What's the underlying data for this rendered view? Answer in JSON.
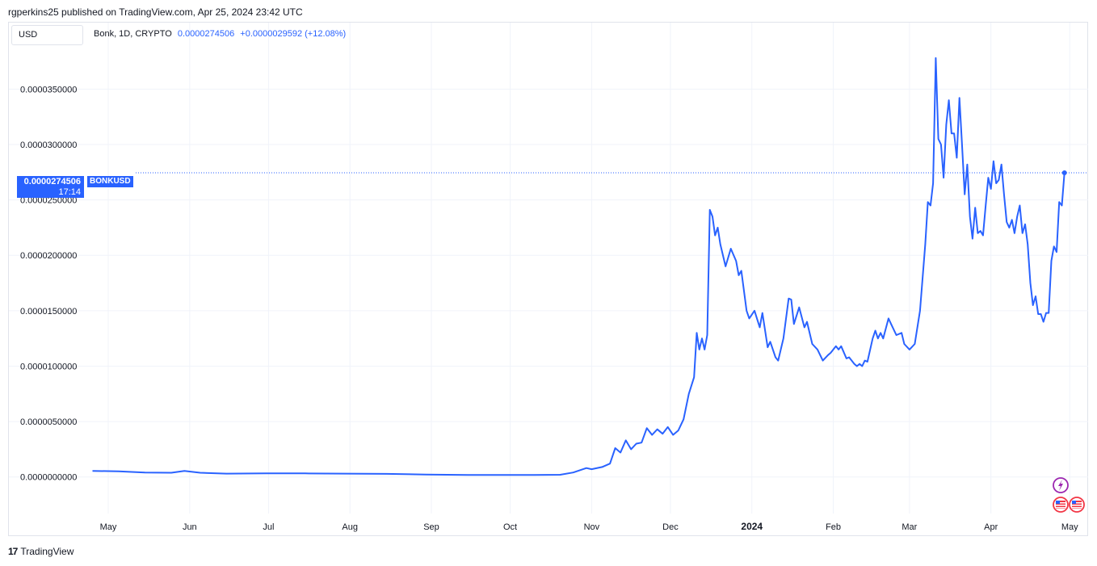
{
  "header": {
    "published": "rgperkins25 published on TradingView.com, Apr 25, 2024 23:42 UTC"
  },
  "currency_button": {
    "label": "USD"
  },
  "legend": {
    "symbol": "Bonk, 1D, CRYPTO",
    "price": "0.0000274506",
    "change": "+0.0000029592 (+12.08%)"
  },
  "price_label": {
    "price": "0.0000274506",
    "countdown": "17:14",
    "ticker": "BONKUSD"
  },
  "footer": {
    "brand": "TradingView",
    "logo_glyph": "17"
  },
  "colors": {
    "line": "#2962ff",
    "grid": "#f0f3fa",
    "border": "#e0e3eb"
  },
  "chart_data": {
    "type": "line",
    "series": [
      {
        "values": [
          [
            "2023-04-25",
            5.5e-07
          ],
          [
            "2023-05-05",
            5e-07
          ],
          [
            "2023-05-15",
            4e-07
          ],
          [
            "2023-05-25",
            3.8e-07
          ],
          [
            "2023-05-30",
            5.5e-07
          ],
          [
            "2023-06-05",
            3.8e-07
          ],
          [
            "2023-06-15",
            3e-07
          ],
          [
            "2023-06-30",
            3.2e-07
          ],
          [
            "2023-07-15",
            3.2e-07
          ],
          [
            "2023-07-30",
            3e-07
          ],
          [
            "2023-08-15",
            2.8e-07
          ],
          [
            "2023-08-30",
            2.2e-07
          ],
          [
            "2023-09-15",
            1.8e-07
          ],
          [
            "2023-09-30",
            1.8e-07
          ],
          [
            "2023-10-10",
            1.8e-07
          ],
          [
            "2023-10-20",
            2e-07
          ],
          [
            "2023-10-25",
            4e-07
          ],
          [
            "2023-10-30",
            8e-07
          ],
          [
            "2023-11-01",
            7e-07
          ],
          [
            "2023-11-05",
            9e-07
          ],
          [
            "2023-11-08",
            1.2e-06
          ],
          [
            "2023-11-10",
            2.6e-06
          ],
          [
            "2023-11-12",
            2.2e-06
          ],
          [
            "2023-11-14",
            3.3e-06
          ],
          [
            "2023-11-16",
            2.5e-06
          ],
          [
            "2023-11-18",
            3e-06
          ],
          [
            "2023-11-20",
            3.1e-06
          ],
          [
            "2023-11-22",
            4.4e-06
          ],
          [
            "2023-11-24",
            3.8e-06
          ],
          [
            "2023-11-26",
            4.3e-06
          ],
          [
            "2023-11-28",
            3.9e-06
          ],
          [
            "2023-11-30",
            4.5e-06
          ],
          [
            "2023-12-02",
            3.8e-06
          ],
          [
            "2023-12-04",
            4.2e-06
          ],
          [
            "2023-12-06",
            5.2e-06
          ],
          [
            "2023-12-08",
            7.5e-06
          ],
          [
            "2023-12-10",
            9e-06
          ],
          [
            "2023-12-11",
            1.3e-05
          ],
          [
            "2023-12-12",
            1.15e-05
          ],
          [
            "2023-12-13",
            1.25e-05
          ],
          [
            "2023-12-14",
            1.15e-05
          ],
          [
            "2023-12-15",
            1.28e-05
          ],
          [
            "2023-12-16",
            2.41e-05
          ],
          [
            "2023-12-17",
            2.35e-05
          ],
          [
            "2023-12-18",
            2.18e-05
          ],
          [
            "2023-12-19",
            2.25e-05
          ],
          [
            "2023-12-20",
            2.1e-05
          ],
          [
            "2023-12-22",
            1.9e-05
          ],
          [
            "2023-12-24",
            2.06e-05
          ],
          [
            "2023-12-26",
            1.95e-05
          ],
          [
            "2023-12-27",
            1.82e-05
          ],
          [
            "2023-12-28",
            1.86e-05
          ],
          [
            "2023-12-30",
            1.5e-05
          ],
          [
            "2023-12-31",
            1.43e-05
          ],
          [
            "2024-01-02",
            1.5e-05
          ],
          [
            "2024-01-04",
            1.35e-05
          ],
          [
            "2024-01-05",
            1.48e-05
          ],
          [
            "2024-01-07",
            1.17e-05
          ],
          [
            "2024-01-08",
            1.22e-05
          ],
          [
            "2024-01-10",
            1.08e-05
          ],
          [
            "2024-01-11",
            1.05e-05
          ],
          [
            "2024-01-13",
            1.25e-05
          ],
          [
            "2024-01-15",
            1.61e-05
          ],
          [
            "2024-01-16",
            1.6e-05
          ],
          [
            "2024-01-17",
            1.38e-05
          ],
          [
            "2024-01-19",
            1.53e-05
          ],
          [
            "2024-01-21",
            1.35e-05
          ],
          [
            "2024-01-22",
            1.4e-05
          ],
          [
            "2024-01-24",
            1.2e-05
          ],
          [
            "2024-01-26",
            1.15e-05
          ],
          [
            "2024-01-28",
            1.05e-05
          ],
          [
            "2024-01-30",
            1.1e-05
          ],
          [
            "2024-01-31",
            1.12e-05
          ],
          [
            "2024-02-02",
            1.18e-05
          ],
          [
            "2024-02-03",
            1.15e-05
          ],
          [
            "2024-02-04",
            1.18e-05
          ],
          [
            "2024-02-06",
            1.07e-05
          ],
          [
            "2024-02-07",
            1.08e-05
          ],
          [
            "2024-02-09",
            1.02e-05
          ],
          [
            "2024-02-10",
            1e-05
          ],
          [
            "2024-02-11",
            1.02e-05
          ],
          [
            "2024-02-12",
            1e-05
          ],
          [
            "2024-02-13",
            1.05e-05
          ],
          [
            "2024-02-14",
            1.04e-05
          ],
          [
            "2024-02-16",
            1.25e-05
          ],
          [
            "2024-02-17",
            1.32e-05
          ],
          [
            "2024-02-18",
            1.25e-05
          ],
          [
            "2024-02-19",
            1.3e-05
          ],
          [
            "2024-02-20",
            1.25e-05
          ],
          [
            "2024-02-22",
            1.43e-05
          ],
          [
            "2024-02-23",
            1.38e-05
          ],
          [
            "2024-02-25",
            1.28e-05
          ],
          [
            "2024-02-27",
            1.3e-05
          ],
          [
            "2024-02-28",
            1.2e-05
          ],
          [
            "2024-03-01",
            1.15e-05
          ],
          [
            "2024-03-03",
            1.2e-05
          ],
          [
            "2024-03-05",
            1.5e-05
          ],
          [
            "2024-03-07",
            2.1e-05
          ],
          [
            "2024-03-08",
            2.48e-05
          ],
          [
            "2024-03-09",
            2.45e-05
          ],
          [
            "2024-03-10",
            2.65e-05
          ],
          [
            "2024-03-11",
            3.78e-05
          ],
          [
            "2024-03-12",
            3.05e-05
          ],
          [
            "2024-03-13",
            3e-05
          ],
          [
            "2024-03-14",
            2.7e-05
          ],
          [
            "2024-03-15",
            3.18e-05
          ],
          [
            "2024-03-16",
            3.4e-05
          ],
          [
            "2024-03-17",
            3.1e-05
          ],
          [
            "2024-03-18",
            3.1e-05
          ],
          [
            "2024-03-19",
            2.88e-05
          ],
          [
            "2024-03-20",
            3.42e-05
          ],
          [
            "2024-03-21",
            3e-05
          ],
          [
            "2024-03-22",
            2.55e-05
          ],
          [
            "2024-03-23",
            2.82e-05
          ],
          [
            "2024-03-24",
            2.35e-05
          ],
          [
            "2024-03-25",
            2.15e-05
          ],
          [
            "2024-03-26",
            2.43e-05
          ],
          [
            "2024-03-27",
            2.2e-05
          ],
          [
            "2024-03-28",
            2.22e-05
          ],
          [
            "2024-03-29",
            2.18e-05
          ],
          [
            "2024-03-30",
            2.45e-05
          ],
          [
            "2024-03-31",
            2.7e-05
          ],
          [
            "2024-04-01",
            2.6e-05
          ],
          [
            "2024-04-02",
            2.85e-05
          ],
          [
            "2024-04-03",
            2.65e-05
          ],
          [
            "2024-04-04",
            2.68e-05
          ],
          [
            "2024-04-05",
            2.82e-05
          ],
          [
            "2024-04-06",
            2.55e-05
          ],
          [
            "2024-04-07",
            2.3e-05
          ],
          [
            "2024-04-08",
            2.25e-05
          ],
          [
            "2024-04-09",
            2.32e-05
          ],
          [
            "2024-04-10",
            2.2e-05
          ],
          [
            "2024-04-11",
            2.35e-05
          ],
          [
            "2024-04-12",
            2.45e-05
          ],
          [
            "2024-04-13",
            2.2e-05
          ],
          [
            "2024-04-14",
            2.28e-05
          ],
          [
            "2024-04-15",
            2.1e-05
          ],
          [
            "2024-04-16",
            1.75e-05
          ],
          [
            "2024-04-17",
            1.55e-05
          ],
          [
            "2024-04-18",
            1.63e-05
          ],
          [
            "2024-04-19",
            1.47e-05
          ],
          [
            "2024-04-20",
            1.47e-05
          ],
          [
            "2024-04-21",
            1.4e-05
          ],
          [
            "2024-04-22",
            1.48e-05
          ],
          [
            "2024-04-23",
            1.48e-05
          ],
          [
            "2024-04-24",
            1.95e-05
          ],
          [
            "2024-04-25",
            2.08e-05
          ],
          [
            "2024-04-26",
            2.03e-05
          ],
          [
            "2024-04-27",
            2.48e-05
          ],
          [
            "2024-04-28",
            2.45e-05
          ],
          [
            "2024-04-29",
            2.74506e-05
          ]
        ]
      }
    ],
    "x_ticks": [
      {
        "label": "May",
        "date": "2023-05-01"
      },
      {
        "label": "Jun",
        "date": "2023-06-01"
      },
      {
        "label": "Jul",
        "date": "2023-07-01"
      },
      {
        "label": "Aug",
        "date": "2023-08-01"
      },
      {
        "label": "Sep",
        "date": "2023-09-01"
      },
      {
        "label": "Oct",
        "date": "2023-10-01"
      },
      {
        "label": "Nov",
        "date": "2023-11-01"
      },
      {
        "label": "Dec",
        "date": "2023-12-01"
      },
      {
        "label": "2024",
        "date": "2024-01-01"
      },
      {
        "label": "Feb",
        "date": "2024-02-01"
      },
      {
        "label": "Mar",
        "date": "2024-03-01"
      },
      {
        "label": "Apr",
        "date": "2024-04-01"
      },
      {
        "label": "May",
        "date": "2024-05-01"
      }
    ],
    "y_ticks": [
      0.0,
      5e-06,
      1e-05,
      1.5e-05,
      2e-05,
      2.5e-05,
      3e-05,
      3.5e-05
    ],
    "y_tick_labels": [
      "0.0000000000",
      "0.0000050000",
      "0.0000100000",
      "0.0000150000",
      "0.0000200000",
      "0.0000250000",
      "0.0000300000",
      "0.0000350000"
    ],
    "xlim": [
      "2023-04-23",
      "2024-05-08"
    ],
    "ylim": [
      -3.3e-06,
      4.1e-05
    ],
    "last_value": 2.74506e-05,
    "grid": true
  }
}
